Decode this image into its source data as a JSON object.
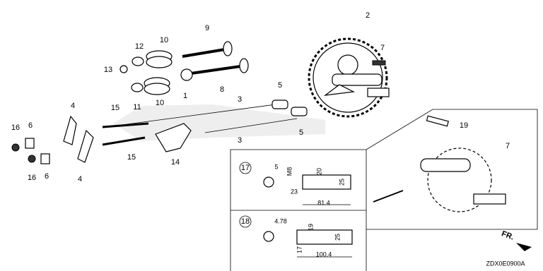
{
  "callouts": [
    "2",
    "7",
    "9",
    "10",
    "12",
    "13",
    "1",
    "8",
    "11",
    "10",
    "5",
    "3",
    "15",
    "4",
    "16",
    "6",
    "3",
    "5",
    "16",
    "6",
    "4",
    "15",
    "14",
    "19",
    "7"
  ],
  "detail_17": {
    "number": "17",
    "dimensions": [
      "5",
      "M8",
      "20",
      "25",
      "23",
      "81.4"
    ]
  },
  "detail_18": {
    "number": "18",
    "dimensions": [
      "4.78",
      "19",
      "25",
      "17",
      "100.4"
    ]
  },
  "direction": "FR.",
  "code": "ZDX0E0900A"
}
